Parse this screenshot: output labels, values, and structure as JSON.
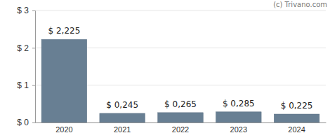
{
  "chart_data": {
    "type": "bar",
    "categories": [
      "2020",
      "2021",
      "2022",
      "2023",
      "2024"
    ],
    "values": [
      2.225,
      0.245,
      0.265,
      0.285,
      0.225
    ],
    "value_labels": [
      "$ 2,225",
      "$ 0,245",
      "$ 0,265",
      "$ 0,285",
      "$ 0,225"
    ],
    "data_labels": true,
    "color": "#687f93",
    "ylim": [
      0,
      3
    ],
    "yticks": [
      {
        "value": 0,
        "label": "$ 0"
      },
      {
        "value": 1,
        "label": "$ 1"
      },
      {
        "value": 2,
        "label": "$ 2"
      },
      {
        "value": 3,
        "label": "$ 3"
      }
    ],
    "grid": true,
    "annotations": [
      "(c) Trivano.com"
    ]
  }
}
